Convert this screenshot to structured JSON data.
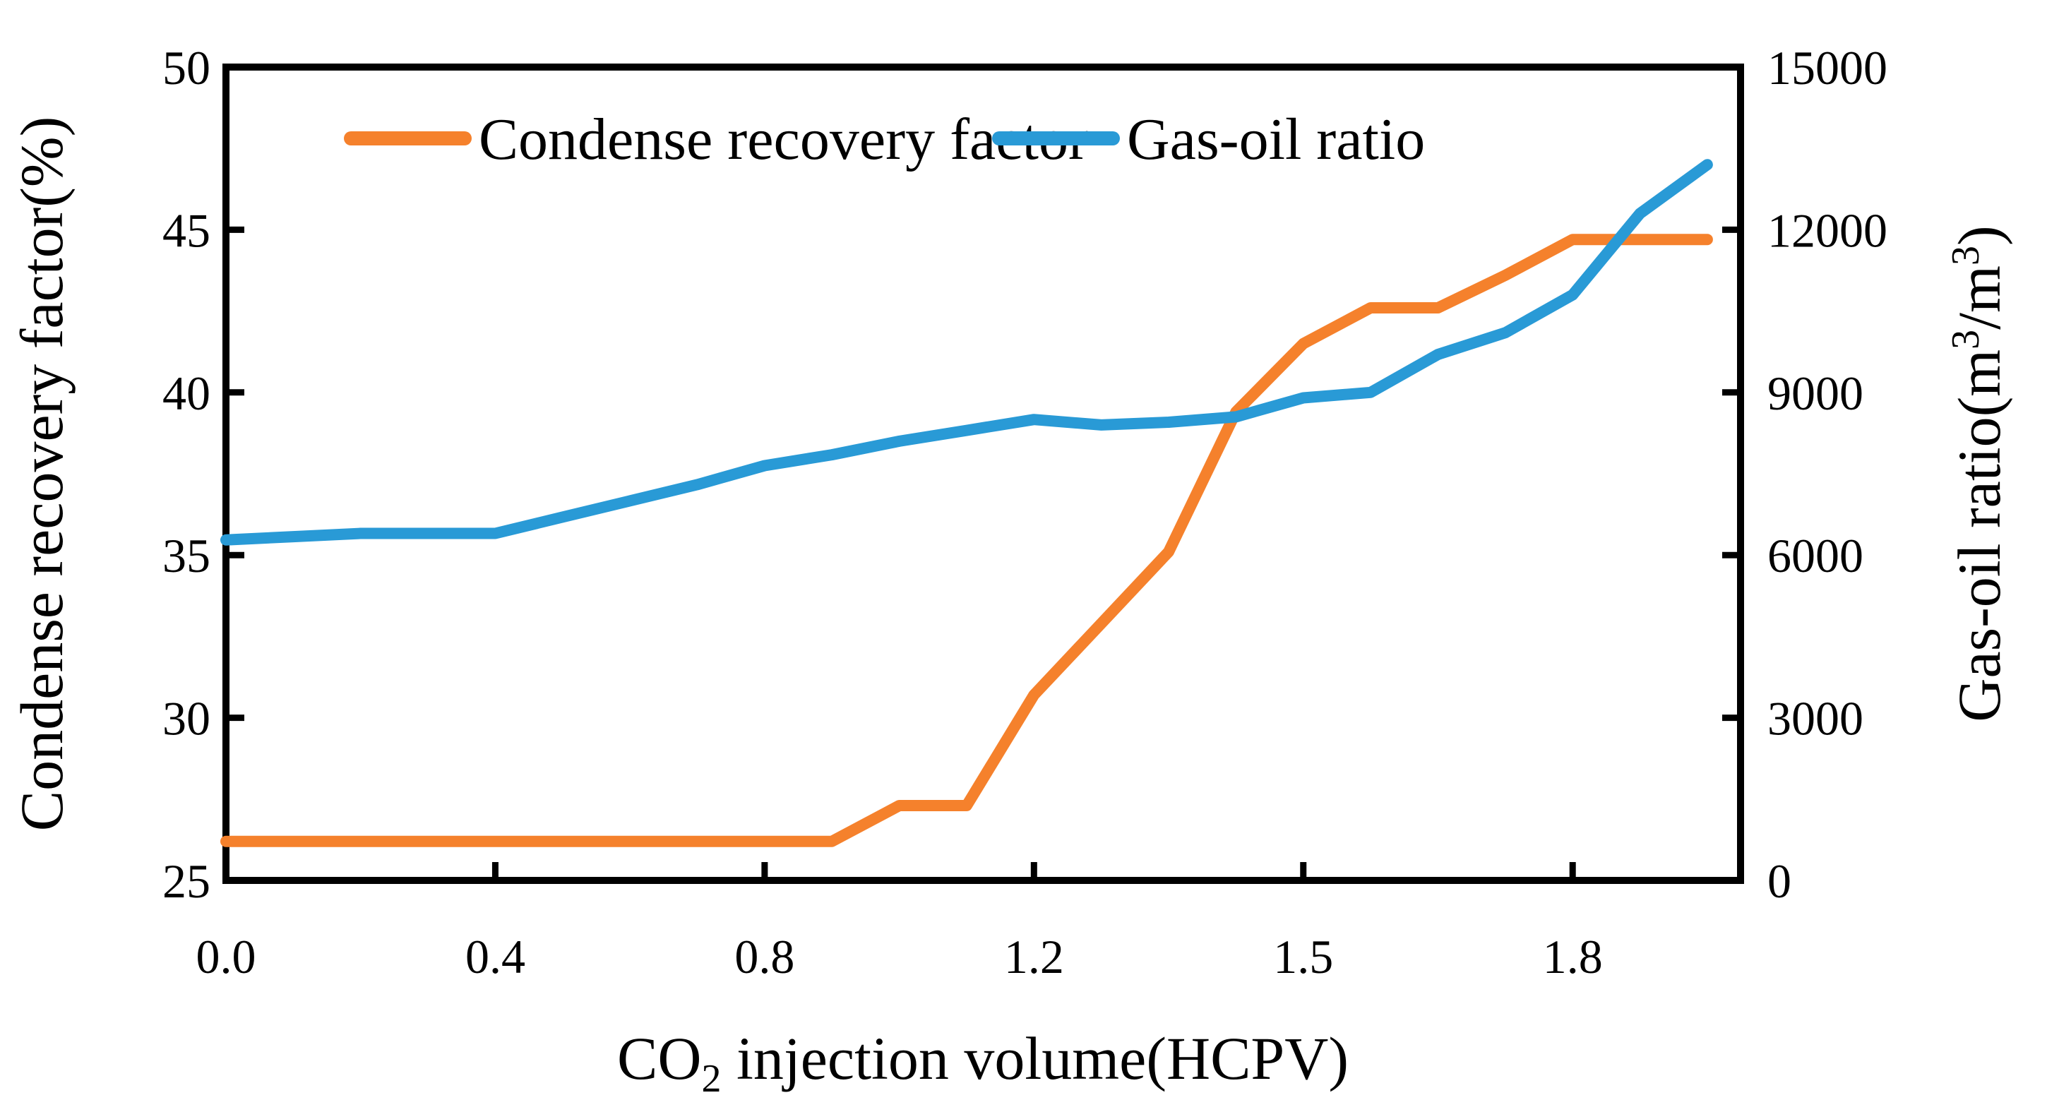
{
  "figure": {
    "background": "#FFFFFF",
    "axis_color": "#000000"
  },
  "chart_data": {
    "type": "line",
    "title": "",
    "xlabel": "CO2 injection volume(HCPV)",
    "xlabel_parts": [
      {
        "t": "CO"
      },
      {
        "t": "2",
        "shift": "sub"
      },
      {
        "t": " injection volume(HCPV)"
      }
    ],
    "ylabel_left": "Condense recovery factor(%)",
    "ylabel_right": "Gas-oil ratio(m3/m3)",
    "ylabel_right_parts": [
      {
        "t": "Gas-oil ratio(m"
      },
      {
        "t": "3",
        "shift": "sup"
      },
      {
        "t": "/m"
      },
      {
        "t": "3",
        "shift": "sup"
      },
      {
        "t": ")"
      }
    ],
    "x_axis": {
      "categories": [
        0.0,
        0.1,
        0.2,
        0.3,
        0.4,
        0.5,
        0.6,
        0.7,
        0.8,
        0.9,
        1.0,
        1.1,
        1.2,
        1.275,
        1.35,
        1.425,
        1.5,
        1.575,
        1.65,
        1.725,
        1.8,
        1.875,
        1.95
      ],
      "tick_indices": [
        0,
        4,
        8,
        12,
        16,
        20
      ],
      "tick_labels": [
        "0.0",
        "0.4",
        "0.8",
        "1.2",
        "1.5",
        "1.8"
      ]
    },
    "left_axis": {
      "min": 25,
      "max": 50,
      "ticks": [
        25,
        30,
        35,
        40,
        45,
        50
      ]
    },
    "right_axis": {
      "min": 0,
      "max": 15000,
      "ticks": [
        0,
        3000,
        6000,
        9000,
        12000,
        15000
      ]
    },
    "grid": false,
    "legend_position": "top-center-inside",
    "series": [
      {
        "name": "Condense recovery factor",
        "axis": "left",
        "color": "#F5812C",
        "values": [
          26.2,
          26.2,
          26.2,
          26.2,
          26.2,
          26.2,
          26.2,
          26.2,
          26.2,
          26.2,
          27.3,
          27.3,
          30.7,
          32.9,
          35.1,
          39.4,
          41.5,
          42.6,
          42.6,
          43.6,
          44.7,
          44.7,
          44.7
        ]
      },
      {
        "name": "Gas-oil ratio",
        "axis": "right",
        "color": "#299AD6",
        "values": [
          6280,
          6340,
          6400,
          6400,
          6400,
          6700,
          7000,
          7300,
          7650,
          7850,
          8100,
          8300,
          8500,
          8400,
          8450,
          8550,
          8900,
          9000,
          9700,
          10100,
          10800,
          12300,
          13200
        ]
      }
    ]
  }
}
